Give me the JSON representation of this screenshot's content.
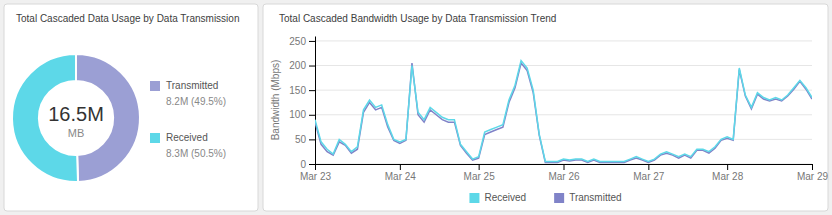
{
  "chart_data": [
    {
      "type": "pie",
      "title": "Total Cascaded Data Usage by Data Transmission",
      "categories": [
        "Transmitted",
        "Received"
      ],
      "values": [
        49.5,
        50.5
      ],
      "value_labels": [
        "8.2M (49.5%)",
        "8.3M (50.5%)"
      ],
      "colors": [
        "#9b9fd4",
        "#5dd8e8"
      ],
      "annotations": [
        "16.5M",
        "MB"
      ],
      "legend": "right"
    },
    {
      "type": "line",
      "title": "Total Cascaded Bandwidth Usage by Data Transmission Trend",
      "y_label": "Bandwidth (Mbps)",
      "categories": [
        "Mar 23",
        null,
        null,
        null,
        null,
        null,
        null,
        null,
        null,
        null,
        null,
        null,
        null,
        null,
        "Mar 24",
        null,
        null,
        null,
        null,
        null,
        null,
        null,
        null,
        null,
        null,
        null,
        null,
        "Mar 25",
        null,
        null,
        null,
        null,
        null,
        null,
        null,
        null,
        null,
        null,
        null,
        null,
        null,
        "Mar 26",
        null,
        null,
        null,
        null,
        null,
        null,
        null,
        null,
        null,
        null,
        null,
        null,
        null,
        "Mar 27",
        null,
        null,
        null,
        null,
        null,
        null,
        null,
        null,
        null,
        null,
        null,
        null,
        "Mar 28",
        null,
        null,
        null,
        null,
        null,
        null,
        null,
        null,
        null,
        null,
        null,
        null,
        null,
        "Mar 29"
      ],
      "series": [
        {
          "name": "Received",
          "color": "#5dd8e8",
          "values": [
            90,
            45,
            30,
            20,
            50,
            40,
            25,
            35,
            110,
            130,
            115,
            120,
            80,
            50,
            45,
            50,
            200,
            105,
            90,
            115,
            105,
            95,
            90,
            90,
            40,
            25,
            10,
            15,
            65,
            70,
            75,
            80,
            130,
            160,
            210,
            195,
            150,
            60,
            5,
            5,
            5,
            10,
            8,
            10,
            10,
            5,
            10,
            5,
            5,
            5,
            5,
            5,
            10,
            15,
            10,
            5,
            10,
            20,
            25,
            20,
            15,
            20,
            15,
            30,
            30,
            25,
            35,
            50,
            55,
            50,
            195,
            140,
            115,
            145,
            135,
            130,
            135,
            130,
            140,
            155,
            170,
            155,
            135
          ]
        },
        {
          "name": "Transmitted",
          "color": "#8083c8",
          "values": [
            85,
            40,
            25,
            18,
            45,
            38,
            22,
            30,
            105,
            125,
            110,
            115,
            75,
            48,
            42,
            48,
            205,
            100,
            85,
            110,
            100,
            90,
            85,
            85,
            38,
            22,
            8,
            12,
            60,
            65,
            70,
            75,
            125,
            155,
            205,
            190,
            145,
            58,
            3,
            3,
            3,
            8,
            6,
            8,
            8,
            3,
            8,
            3,
            3,
            3,
            3,
            3,
            8,
            12,
            8,
            3,
            8,
            18,
            22,
            18,
            12,
            18,
            12,
            28,
            28,
            22,
            32,
            48,
            52,
            48,
            192,
            138,
            112,
            142,
            132,
            128,
            132,
            128,
            138,
            152,
            168,
            152,
            132
          ]
        }
      ],
      "ylim": [
        0,
        260
      ],
      "yticks": [
        0,
        50,
        100,
        150,
        200,
        250
      ],
      "grid": true,
      "legend": "bottom"
    }
  ]
}
